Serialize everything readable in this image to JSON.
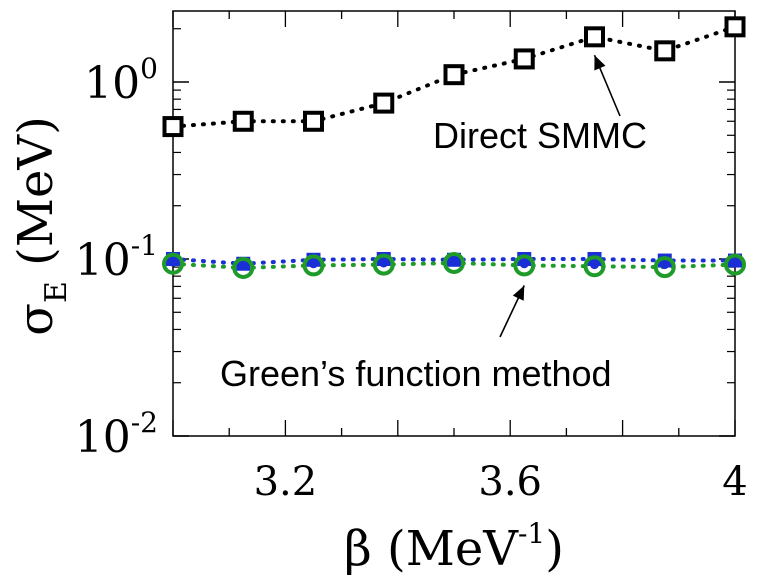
{
  "chart_data": {
    "type": "scatter",
    "yscale": "log",
    "xlabel": "β (MeV⁻¹)",
    "ylabel": "σ_E (MeV)",
    "xlim": [
      3.0,
      4.0
    ],
    "ylim": [
      0.01,
      3.0
    ],
    "x_ticks": [
      3.2,
      3.6,
      4.0
    ],
    "x_tick_labels": [
      "3.2",
      "3.6",
      "4"
    ],
    "y_ticks": [
      {
        "value": 1,
        "base": "10",
        "exp": "0"
      },
      {
        "value": 0.1,
        "base": "10",
        "exp": "-1"
      },
      {
        "value": 0.01,
        "base": "10",
        "exp": "-2"
      }
    ],
    "x": [
      3.0,
      3.125,
      3.25,
      3.375,
      3.5,
      3.625,
      3.75,
      3.875,
      4.0
    ],
    "series": [
      {
        "marker": "square-open",
        "color": "#000000",
        "line": "dotted",
        "values": [
          0.56,
          0.6,
          0.6,
          0.76,
          1.1,
          1.35,
          1.8,
          1.5,
          2.05
        ]
      },
      {
        "marker": "square-filled",
        "color": "#1a2fd6",
        "line": "dotted",
        "values": [
          0.1,
          0.094,
          0.099,
          0.1,
          0.099,
          0.1,
          0.1,
          0.098,
          0.098
        ]
      },
      {
        "marker": "circle-open",
        "color": "#1f9b2a",
        "line": "dotted",
        "values": [
          0.094,
          0.089,
          0.092,
          0.093,
          0.095,
          0.092,
          0.091,
          0.09,
          0.093
        ]
      },
      {
        "marker": "circle-dot",
        "color": "#1a2fd6",
        "line": "none",
        "values": [
          0.096,
          0.092,
          0.094,
          0.095,
          0.096,
          0.094,
          0.093,
          0.093,
          0.095
        ]
      }
    ],
    "annotations": [
      {
        "text": "Direct SMMC",
        "arrow_to": {
          "x": 3.75,
          "y": 1.7
        }
      },
      {
        "text": "Green’s function method",
        "arrow_to": {
          "x": 3.625,
          "y": 0.085
        }
      }
    ]
  }
}
